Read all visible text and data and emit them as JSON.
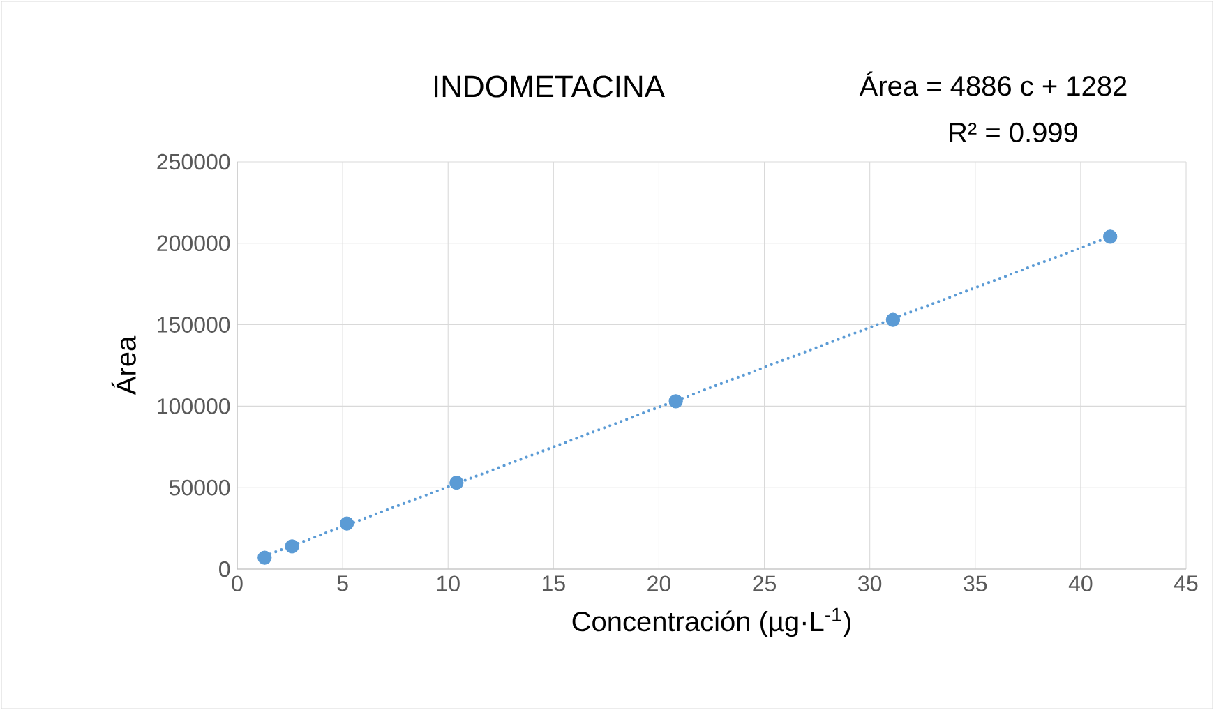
{
  "chart_data": {
    "type": "scatter",
    "title": "INDOMETACINA",
    "xlabel": "Concentración (µg·L$^{-1}$)",
    "ylabel": "Área",
    "annotations": [
      "Área = 4886 c + 1282",
      "R² = 0.999"
    ],
    "series": [
      {
        "color": "#5b9bd5",
        "marker": "circle",
        "x": [
          1.3,
          2.6,
          5.2,
          10.4,
          20.8,
          31.1,
          41.4
        ],
        "values": [
          7000,
          14000,
          28000,
          53000,
          103000,
          153000,
          204000
        ]
      },
      {
        "type": "line",
        "color": "#5b9bd5",
        "marker": "none",
        "line_style": "dotted",
        "x": [
          1.3,
          41.4
        ],
        "values": [
          8000,
          204000
        ]
      }
    ],
    "xlim": [
      0,
      45
    ],
    "xticks": [
      0,
      5,
      10,
      15,
      20,
      25,
      30,
      35,
      40,
      45
    ],
    "ylim": [
      0,
      250000
    ],
    "yticks": [
      0,
      50000,
      100000,
      150000,
      200000,
      250000
    ],
    "grid": true
  }
}
